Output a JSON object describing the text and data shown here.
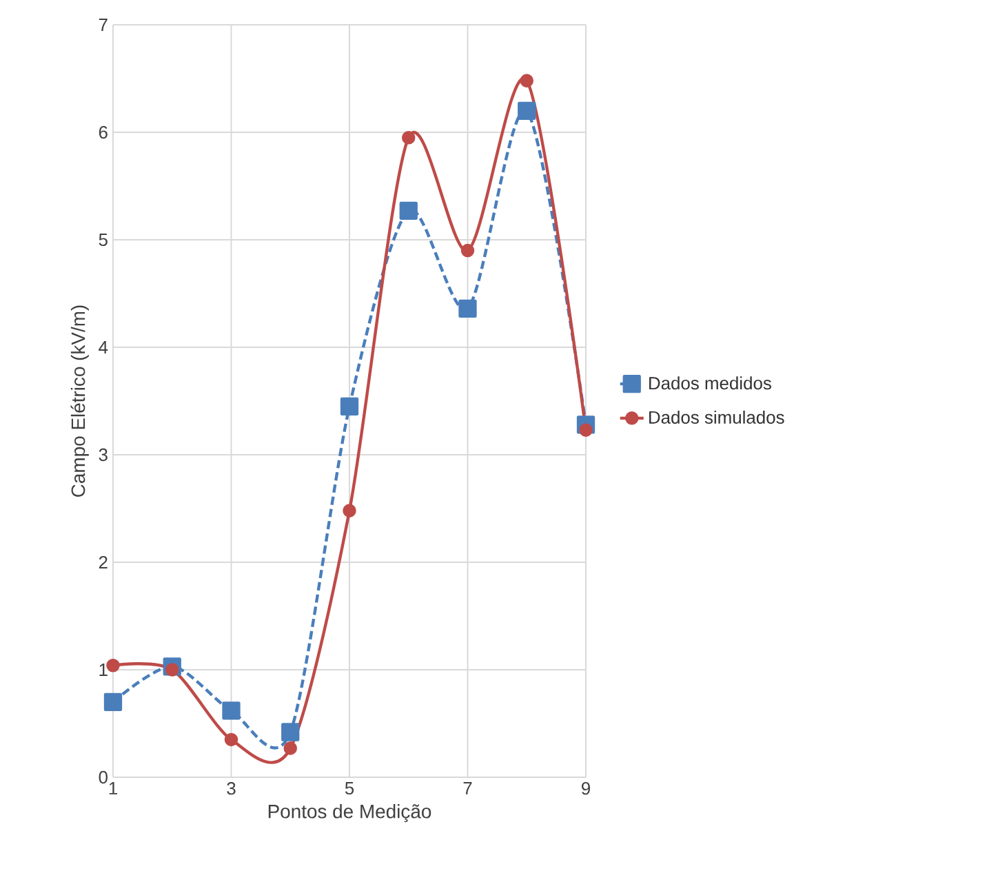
{
  "chart_data": {
    "type": "line",
    "xlabel": "Pontos de Medição",
    "ylabel": "Campo Elétrico (kV/m)",
    "x": [
      1,
      2,
      3,
      4,
      5,
      6,
      7,
      8,
      9
    ],
    "xlim": [
      1,
      9
    ],
    "xticks": [
      1,
      3,
      5,
      7,
      9
    ],
    "ylim": [
      0,
      7
    ],
    "yticks": [
      0,
      1,
      2,
      3,
      4,
      5,
      6,
      7
    ],
    "grid": true,
    "legend": "right",
    "series": [
      {
        "name": "Dados medidos",
        "color": "#4a7ebb",
        "marker": "square",
        "line_style": "dashed",
        "values": [
          0.7,
          1.03,
          0.62,
          0.42,
          3.45,
          5.27,
          4.36,
          6.2,
          3.28
        ]
      },
      {
        "name": "Dados simulados",
        "color": "#be4b48",
        "marker": "circle",
        "line_style": "solid",
        "values": [
          1.04,
          1.0,
          0.35,
          0.27,
          2.48,
          5.95,
          4.9,
          6.48,
          3.23
        ]
      }
    ]
  }
}
